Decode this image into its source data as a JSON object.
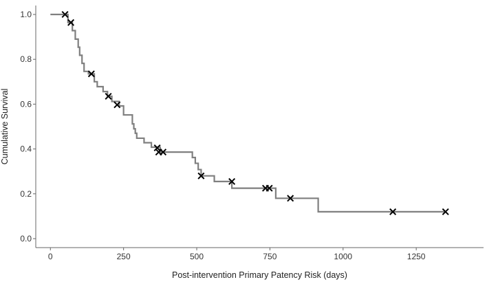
{
  "chart_data": {
    "type": "line",
    "subtype": "kaplan-meier",
    "xlabel": "Post-intervention Primary Patency Risk (days)",
    "ylabel": "Cumulative Survival",
    "xlim": [
      -50,
      1480
    ],
    "ylim": [
      -0.04,
      1.04
    ],
    "xticks": [
      0,
      250,
      500,
      750,
      1000,
      1250
    ],
    "yticks": [
      0.0,
      0.2,
      0.4,
      0.6,
      0.8,
      1.0
    ],
    "xtick_labels": [
      "0",
      "250",
      "500",
      "750",
      "1000",
      "1250"
    ],
    "ytick_labels": [
      "0.0",
      "0.2",
      "0.4",
      "0.6",
      "0.8",
      "1.0"
    ],
    "grid": false,
    "curve_color": "#7f7f7f",
    "censor_color": "#000000",
    "survival_steps": [
      {
        "x": 0,
        "y": 1.0
      },
      {
        "x": 60,
        "y": 0.964
      },
      {
        "x": 75,
        "y": 0.928
      },
      {
        "x": 85,
        "y": 0.89
      },
      {
        "x": 95,
        "y": 0.854
      },
      {
        "x": 100,
        "y": 0.818
      },
      {
        "x": 108,
        "y": 0.782
      },
      {
        "x": 115,
        "y": 0.746
      },
      {
        "x": 130,
        "y": 0.735
      },
      {
        "x": 150,
        "y": 0.7
      },
      {
        "x": 160,
        "y": 0.678
      },
      {
        "x": 180,
        "y": 0.656
      },
      {
        "x": 195,
        "y": 0.635
      },
      {
        "x": 210,
        "y": 0.612
      },
      {
        "x": 235,
        "y": 0.592
      },
      {
        "x": 250,
        "y": 0.552
      },
      {
        "x": 280,
        "y": 0.512
      },
      {
        "x": 285,
        "y": 0.49
      },
      {
        "x": 290,
        "y": 0.47
      },
      {
        "x": 295,
        "y": 0.448
      },
      {
        "x": 320,
        "y": 0.428
      },
      {
        "x": 345,
        "y": 0.408
      },
      {
        "x": 375,
        "y": 0.386
      },
      {
        "x": 485,
        "y": 0.362
      },
      {
        "x": 495,
        "y": 0.336
      },
      {
        "x": 505,
        "y": 0.308
      },
      {
        "x": 515,
        "y": 0.28
      },
      {
        "x": 560,
        "y": 0.255
      },
      {
        "x": 620,
        "y": 0.225
      },
      {
        "x": 770,
        "y": 0.18
      },
      {
        "x": 915,
        "y": 0.12
      },
      {
        "x": 1350,
        "y": 0.12
      }
    ],
    "censored_points": [
      {
        "x": 50,
        "y": 1.0
      },
      {
        "x": 70,
        "y": 0.964
      },
      {
        "x": 140,
        "y": 0.735
      },
      {
        "x": 198,
        "y": 0.635
      },
      {
        "x": 228,
        "y": 0.597
      },
      {
        "x": 365,
        "y": 0.405
      },
      {
        "x": 370,
        "y": 0.386
      },
      {
        "x": 385,
        "y": 0.386
      },
      {
        "x": 515,
        "y": 0.28
      },
      {
        "x": 620,
        "y": 0.255
      },
      {
        "x": 735,
        "y": 0.225
      },
      {
        "x": 748,
        "y": 0.225
      },
      {
        "x": 820,
        "y": 0.18
      },
      {
        "x": 1170,
        "y": 0.12
      },
      {
        "x": 1350,
        "y": 0.12
      }
    ]
  }
}
